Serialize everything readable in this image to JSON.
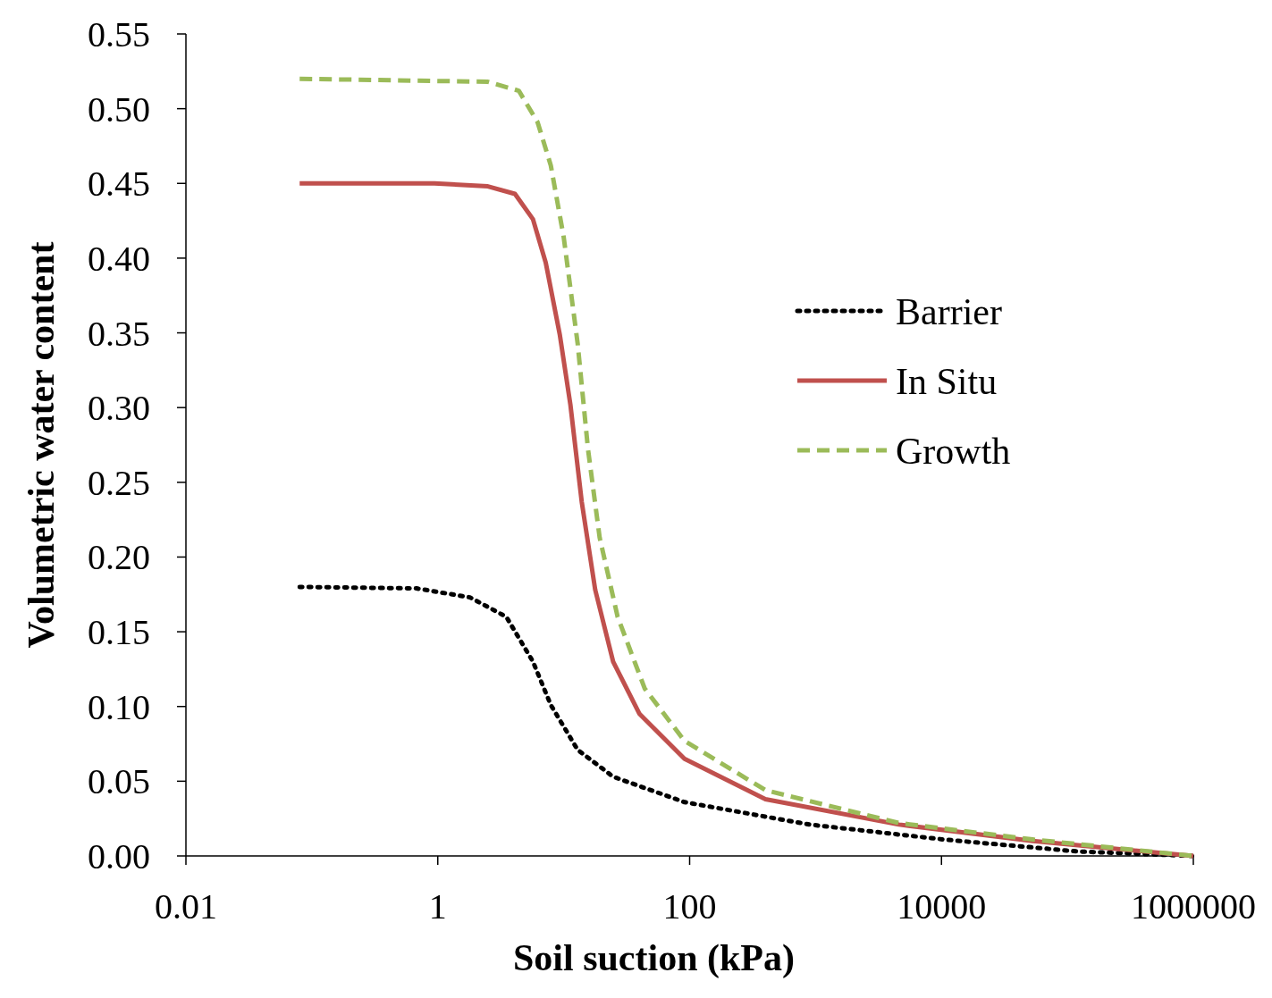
{
  "chart_data": {
    "type": "line",
    "xlabel": "Soil suction (kPa)",
    "ylabel": "Volumetric water content",
    "log": "x",
    "xlim": [
      0.01,
      1000000
    ],
    "xticks": [
      0.01,
      1,
      100,
      10000,
      1000000
    ],
    "ylim": [
      0,
      0.55
    ],
    "yticks": [
      {
        "value": 0,
        "label": "0.00"
      },
      {
        "value": 0.05,
        "label": "0.05"
      },
      {
        "value": 0.1,
        "label": "0.10"
      },
      {
        "value": 0.15,
        "label": "0.15"
      },
      {
        "value": 0.2,
        "label": "0.20"
      },
      {
        "value": 0.25,
        "label": "0.25"
      },
      {
        "value": 0.3,
        "label": "0.30"
      },
      {
        "value": 0.35,
        "label": "0.35"
      },
      {
        "value": 0.4,
        "label": "0.40"
      },
      {
        "value": 0.45,
        "label": "0.45"
      },
      {
        "value": 0.5,
        "label": "0.50"
      },
      {
        "value": 0.55,
        "label": "0.55"
      }
    ],
    "grid": false,
    "legend": "right",
    "marker": "none",
    "series": [
      {
        "name": "Barrier",
        "color": "#000000",
        "line_style": "dotted",
        "x": [
          0.08,
          0.68,
          1.8,
          3.5,
          5.7,
          7.9,
          12.9,
          24.7,
          91,
          900,
          10400,
          121000,
          1000000
        ],
        "values": [
          0.18,
          0.179,
          0.173,
          0.16,
          0.13,
          0.101,
          0.071,
          0.053,
          0.036,
          0.021,
          0.011,
          0.003,
          0
        ]
      },
      {
        "name": "In Situ",
        "color": "#c0504d",
        "line_style": "solid",
        "x": [
          0.08,
          0.94,
          2.5,
          4.1,
          5.7,
          7.2,
          9.3,
          11.3,
          13.9,
          17.8,
          24.7,
          40,
          91,
          400,
          4600,
          53000,
          1000000
        ],
        "values": [
          0.45,
          0.45,
          0.448,
          0.443,
          0.426,
          0.397,
          0.349,
          0.302,
          0.237,
          0.178,
          0.13,
          0.095,
          0.065,
          0.038,
          0.021,
          0.01,
          0
        ]
      },
      {
        "name": "Growth",
        "color": "#9bbb59",
        "line_style": "dashed",
        "x": [
          0.08,
          2.5,
          4.4,
          6.2,
          7.9,
          10,
          12.9,
          15.6,
          19.3,
          26.8,
          44,
          91,
          400,
          4600,
          53000,
          1000000
        ],
        "values": [
          0.52,
          0.518,
          0.512,
          0.491,
          0.462,
          0.414,
          0.343,
          0.272,
          0.213,
          0.16,
          0.112,
          0.077,
          0.044,
          0.022,
          0.011,
          0
        ]
      }
    ]
  }
}
